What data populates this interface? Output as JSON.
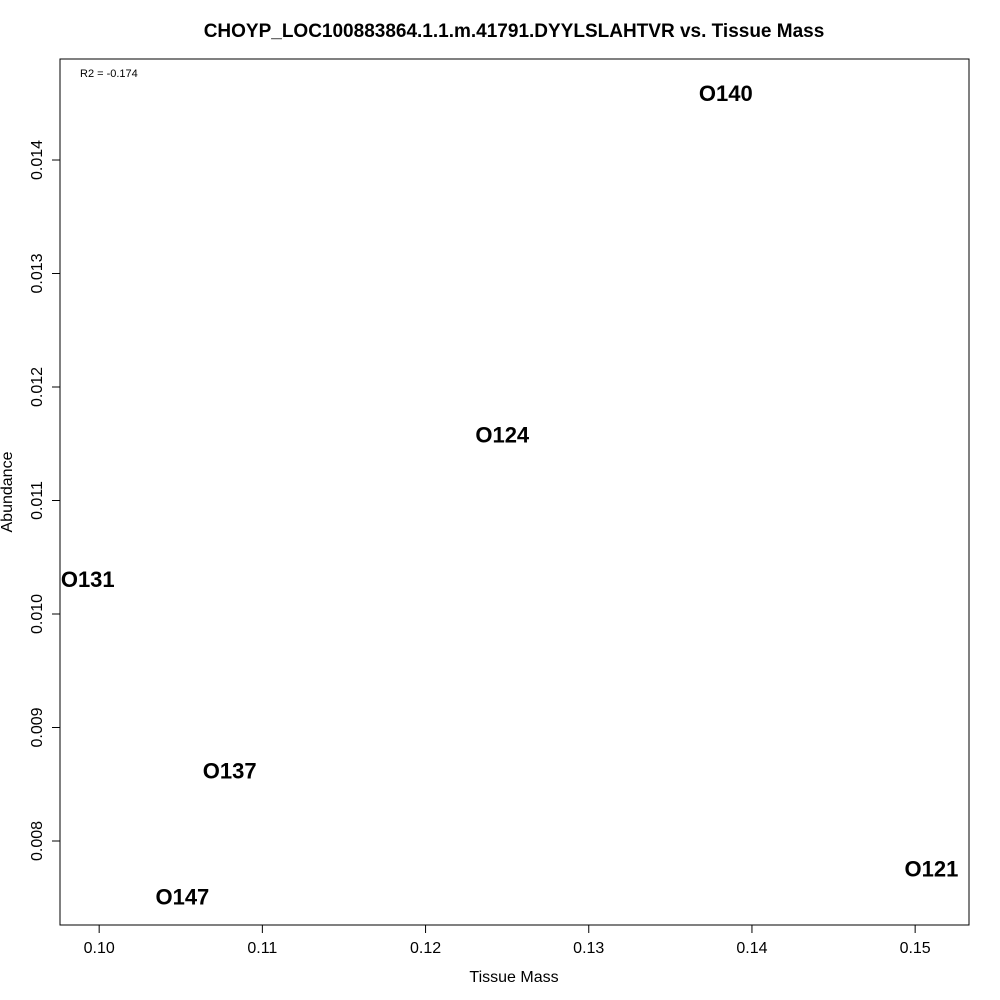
{
  "chart_data": {
    "type": "scatter",
    "title": "CHOYP_LOC100883864.1.1.m.41791.DYYLSLAHTVR vs. Tissue Mass",
    "xlabel": "Tissue Mass",
    "ylabel": "Abundance",
    "annotation": "R2 = -0.174",
    "xlim": [
      0.0976,
      0.1533
    ],
    "ylim": [
      0.00726,
      0.01489
    ],
    "x_ticks": [
      0.1,
      0.11,
      0.12,
      0.13,
      0.14,
      0.15
    ],
    "x_tick_labels": [
      "0.10",
      "0.11",
      "0.12",
      "0.13",
      "0.14",
      "0.15"
    ],
    "y_ticks": [
      0.008,
      0.009,
      0.01,
      0.011,
      0.012,
      0.013,
      0.014
    ],
    "y_tick_labels": [
      "0.008",
      "0.009",
      "0.010",
      "0.011",
      "0.012",
      "0.013",
      "0.014"
    ],
    "grid": false,
    "points": [
      {
        "label": "O140",
        "x": 0.1384,
        "y": 0.01459
      },
      {
        "label": "O124",
        "x": 0.1247,
        "y": 0.01158
      },
      {
        "label": "O131",
        "x": 0.0993,
        "y": 0.01031
      },
      {
        "label": "O137",
        "x": 0.108,
        "y": 0.00862
      },
      {
        "label": "O147",
        "x": 0.1051,
        "y": 0.00751
      },
      {
        "label": "O121",
        "x": 0.151,
        "y": 0.00776
      }
    ]
  }
}
